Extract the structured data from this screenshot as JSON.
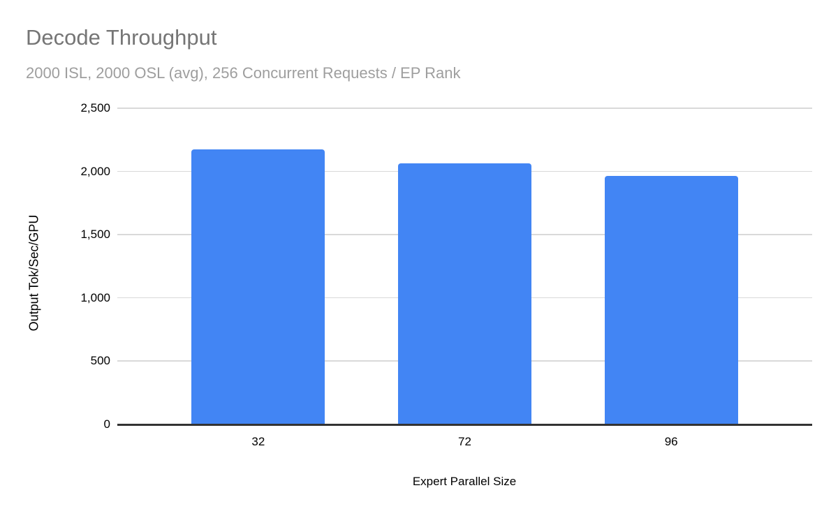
{
  "chart_data": {
    "type": "bar",
    "title": "Decode Throughput",
    "subtitle": "2000 ISL, 2000 OSL (avg), 256 Concurrent Requests / EP Rank",
    "categories": [
      "32",
      "72",
      "96"
    ],
    "values": [
      2175,
      2065,
      1965
    ],
    "xlabel": "Expert Parallel Size",
    "ylabel": "Output Tok/Sec/GPU",
    "ylim": [
      0,
      2500
    ],
    "ytick_step": 500,
    "ytick_labels": [
      "0",
      "500",
      "1,000",
      "1,500",
      "2,000",
      "2,500"
    ],
    "grid": true,
    "legend_position": "none",
    "colors": {
      "bar": "#4285f4",
      "gridline": "#d9d9d9",
      "axis_line": "#333333",
      "title_text": "#757575",
      "subtitle_text": "#9e9e9e",
      "tick_text": "#000000",
      "background": "#ffffff"
    }
  }
}
